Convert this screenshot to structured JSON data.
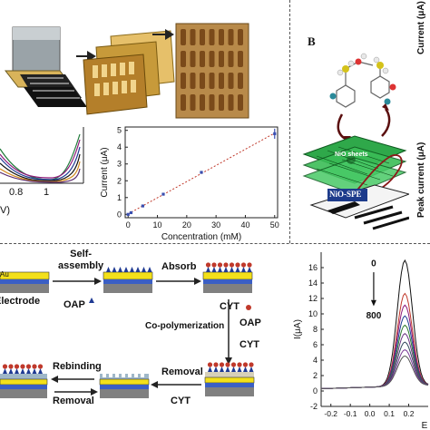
{
  "panel_b": {
    "letter": "B",
    "label_nio_sheets": "NiO sheets",
    "label_electrode": "NiO-SPE",
    "side_ylabel_top": "Current (μA)",
    "side_ylabel_bottom": "Peak current (μA)"
  },
  "top_left_chart": {
    "x_ticks": [
      "0.8",
      "1"
    ],
    "x_unit_fragment": "V)"
  },
  "scheme": {
    "au_label": "Au",
    "electrode_label": "Electrode",
    "self_assembly": "Self-\nassembly",
    "oap": "OAP",
    "absorb": "Absorb",
    "cyt": "CYT",
    "copolymerization": "Co-polymerization",
    "oap2": "OAP",
    "cyt2": "CYT",
    "rebinding": "Rebinding",
    "removal_top": "Removal",
    "removal_bottom": "Removal",
    "cyt3": "CYT"
  },
  "chart_data": [
    {
      "type": "scatter",
      "title": "",
      "xlabel": "Concentration (mM)",
      "ylabel": "Current (μA)",
      "xlim": [
        -1,
        51
      ],
      "ylim": [
        -0.2,
        5.2
      ],
      "x_ticks": [
        0,
        10,
        20,
        30,
        40,
        50
      ],
      "y_ticks": [
        0,
        1,
        2,
        3,
        4,
        5
      ],
      "fit_line": true,
      "series": [
        {
          "x": [
            0,
            1,
            5,
            12,
            25,
            50
          ],
          "values": [
            0.0,
            0.1,
            0.5,
            1.2,
            2.5,
            4.8
          ],
          "error_bar_last": 0.3
        }
      ],
      "colors": {
        "points": "#3a4fb0",
        "fit": "#c0392b"
      }
    },
    {
      "type": "line",
      "title": "",
      "xlabel": "E",
      "ylabel": "I(μA)",
      "xlim": [
        -0.25,
        0.3
      ],
      "ylim": [
        -2,
        18
      ],
      "x_ticks": [
        "-0.2",
        "-0.1",
        "0.0",
        "0.1",
        "0.2"
      ],
      "y_ticks": [
        "-2",
        "0",
        "2",
        "4",
        "6",
        "8",
        "10",
        "12",
        "14",
        "16"
      ],
      "annotations": {
        "top": "0",
        "bottom": "800"
      },
      "peak_x": 0.18,
      "series_peaks": [
        16.8,
        12.5,
        11.0,
        9.6,
        8.4,
        7.3,
        6.2,
        5.2,
        4.4
      ],
      "series_colors": [
        "#111111",
        "#c0392b",
        "#8e1a7a",
        "#1f3a93",
        "#2c7a2c",
        "#6c3483",
        "#34495e",
        "#7d3c98",
        "#555555"
      ]
    }
  ]
}
